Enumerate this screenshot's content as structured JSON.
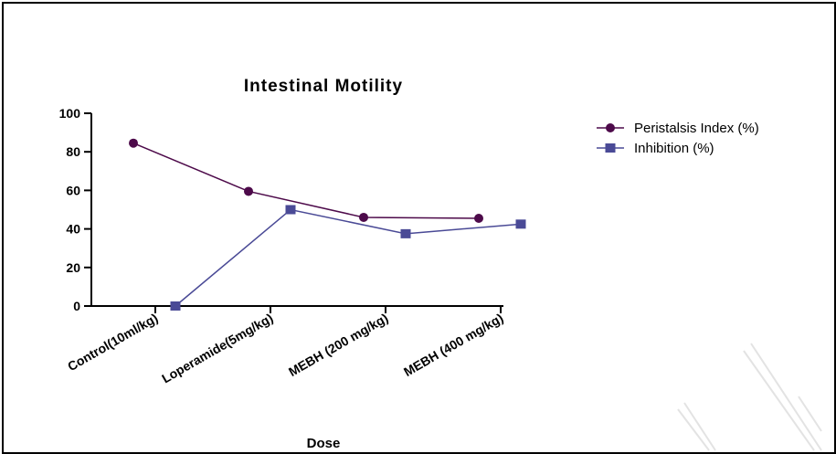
{
  "chart_data": {
    "type": "line",
    "title": "Intestinal Motility",
    "xlabel": "Dose",
    "ylabel": "",
    "categories": [
      "Control(10ml/kg)",
      "Loperamide(5mg/kg)",
      "MEBH (200 mg/kg)",
      "MEBH (400 mg/kg)"
    ],
    "ylim": [
      0,
      100
    ],
    "yticks": [
      "0",
      "20",
      "40",
      "60",
      "80",
      "100"
    ],
    "series": [
      {
        "name": "Peristalsis Index (%)",
        "marker": "circle",
        "color": "#4d0a4a",
        "values": [
          84.5,
          59.5,
          46,
          45.5
        ]
      },
      {
        "name": "Inhibition (%)",
        "marker": "square",
        "color": "#4a4a96",
        "values": [
          0,
          50,
          37.5,
          42.5
        ]
      }
    ],
    "legend": "top-right",
    "grid": false
  }
}
